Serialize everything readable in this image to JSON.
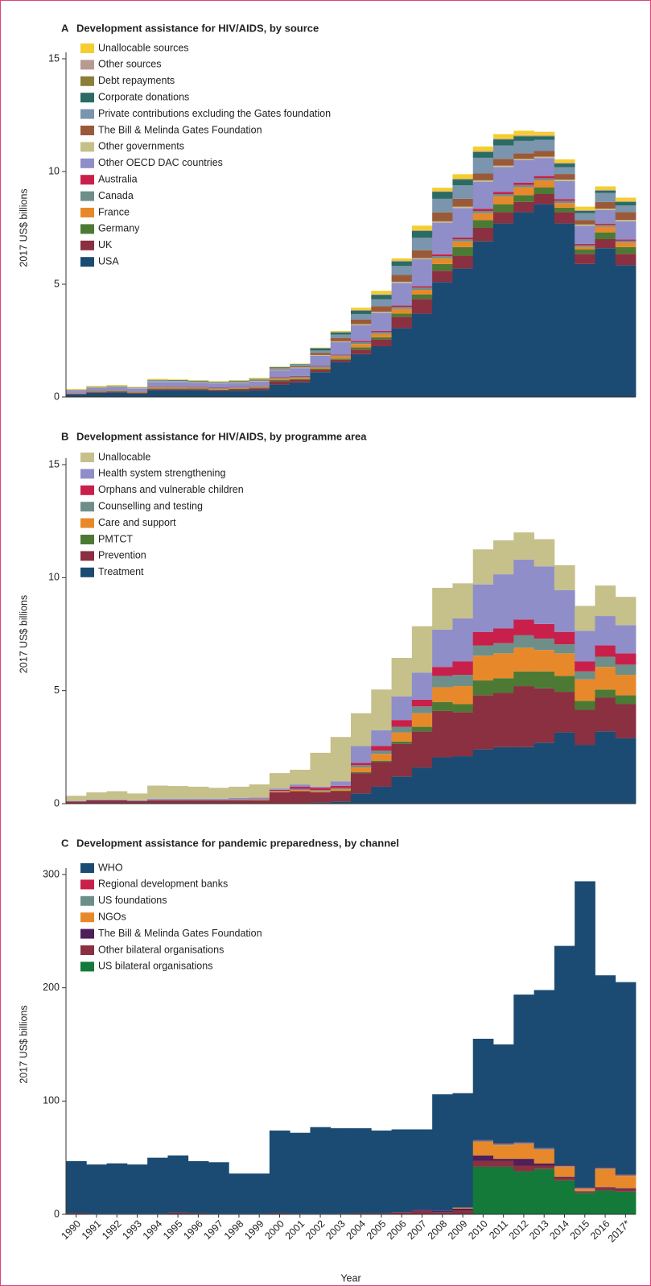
{
  "chart_data": [
    {
      "type": "bar",
      "stacked": true,
      "panel_label": "A",
      "title": "Development assistance for HIV/AIDS, by source",
      "ylabel": "2017 US$ billions",
      "ylim": [
        0,
        15
      ],
      "yticks": [
        0,
        5,
        10,
        15
      ],
      "series": [
        {
          "name": "Unallocable sources",
          "color": "#f5cd2f",
          "values": [
            0.03,
            0.04,
            0.04,
            0.03,
            0.04,
            0.03,
            0.03,
            0.03,
            0.03,
            0.05,
            0.02,
            0.02,
            0.02,
            0.05,
            0.1,
            0.15,
            0.1,
            0.2,
            0.15,
            0.2,
            0.2,
            0.2,
            0.2,
            0.15,
            0.15,
            0.15,
            0.15,
            0.15
          ]
        },
        {
          "name": "Other sources",
          "color": "#b89a93",
          "values": [
            0,
            0,
            0,
            0,
            0,
            0,
            0,
            0,
            0,
            0,
            0.01,
            0.01,
            0.01,
            0.01,
            0.02,
            0.02,
            0.02,
            0.02,
            0.02,
            0.02,
            0.03,
            0.03,
            0.03,
            0.03,
            0.03,
            0.03,
            0.03,
            0.03
          ]
        },
        {
          "name": "Debt repayments",
          "color": "#8b7e3a",
          "values": [
            0,
            0,
            0,
            0,
            0,
            0,
            0,
            0,
            0,
            0,
            0,
            0,
            0,
            0,
            0.01,
            0.01,
            0.02,
            0.02,
            0.02,
            0.02,
            0.02,
            0.02,
            0.02,
            0.02,
            0.02,
            0.01,
            0.01,
            0.01
          ]
        },
        {
          "name": "Corporate donations",
          "color": "#2a6b63",
          "values": [
            0.01,
            0.01,
            0.01,
            0.01,
            0.02,
            0.02,
            0.02,
            0.02,
            0.02,
            0.02,
            0.03,
            0.03,
            0.1,
            0.1,
            0.15,
            0.2,
            0.2,
            0.3,
            0.3,
            0.25,
            0.25,
            0.25,
            0.2,
            0.15,
            0.15,
            0.1,
            0.1,
            0.15
          ]
        },
        {
          "name": "Private contributions excluding the Gates foundation",
          "color": "#7a95ad",
          "values": [
            0.02,
            0.03,
            0.04,
            0.03,
            0.05,
            0.04,
            0.04,
            0.04,
            0.04,
            0.05,
            0.05,
            0.06,
            0.1,
            0.15,
            0.25,
            0.3,
            0.4,
            0.55,
            0.6,
            0.6,
            0.7,
            0.6,
            0.55,
            0.5,
            0.3,
            0.3,
            0.4,
            0.3
          ]
        },
        {
          "name": "The Bill & Melinda Gates Foundation",
          "color": "#9a5a3a",
          "values": [
            0,
            0,
            0,
            0,
            0,
            0,
            0,
            0,
            0.01,
            0.02,
            0.03,
            0.05,
            0.1,
            0.15,
            0.2,
            0.25,
            0.3,
            0.35,
            0.4,
            0.35,
            0.3,
            0.3,
            0.25,
            0.25,
            0.25,
            0.2,
            0.3,
            0.35
          ]
        },
        {
          "name": "Other governments",
          "color": "#c5c08a",
          "values": [
            0.01,
            0.01,
            0.01,
            0.01,
            0.02,
            0.02,
            0.02,
            0.02,
            0.02,
            0.02,
            0.03,
            0.03,
            0.03,
            0.04,
            0.05,
            0.05,
            0.05,
            0.05,
            0.06,
            0.06,
            0.06,
            0.06,
            0.06,
            0.06,
            0.06,
            0.06,
            0.06,
            0.06
          ]
        },
        {
          "name": "Other OECD DAC countries",
          "color": "#8f8ec8",
          "values": [
            0.1,
            0.12,
            0.13,
            0.12,
            0.2,
            0.2,
            0.18,
            0.18,
            0.18,
            0.2,
            0.3,
            0.35,
            0.45,
            0.55,
            0.7,
            0.8,
            1.0,
            1.2,
            1.4,
            1.3,
            1.2,
            1.1,
            1.0,
            0.8,
            0.8,
            0.8,
            0.6,
            0.8
          ]
        },
        {
          "name": "Australia",
          "color": "#c8204a",
          "values": [
            0.01,
            0.01,
            0.01,
            0.01,
            0.02,
            0.02,
            0.02,
            0.02,
            0.02,
            0.02,
            0.03,
            0.03,
            0.03,
            0.03,
            0.05,
            0.05,
            0.06,
            0.06,
            0.08,
            0.08,
            0.1,
            0.1,
            0.1,
            0.1,
            0.08,
            0.06,
            0.06,
            0.06
          ]
        },
        {
          "name": "Canada",
          "color": "#6e8f89",
          "values": [
            0.01,
            0.02,
            0.02,
            0.02,
            0.03,
            0.03,
            0.03,
            0.03,
            0.03,
            0.03,
            0.05,
            0.05,
            0.05,
            0.05,
            0.08,
            0.08,
            0.1,
            0.1,
            0.1,
            0.1,
            0.1,
            0.1,
            0.1,
            0.1,
            0.1,
            0.08,
            0.08,
            0.08
          ]
        },
        {
          "name": "France",
          "color": "#e7892a",
          "values": [
            0.01,
            0.02,
            0.02,
            0.02,
            0.04,
            0.04,
            0.03,
            0.03,
            0.03,
            0.03,
            0.05,
            0.05,
            0.05,
            0.1,
            0.15,
            0.15,
            0.2,
            0.2,
            0.25,
            0.25,
            0.3,
            0.35,
            0.35,
            0.3,
            0.2,
            0.1,
            0.25,
            0.2
          ]
        },
        {
          "name": "Germany",
          "color": "#4c7a34",
          "values": [
            0.01,
            0.02,
            0.02,
            0.02,
            0.03,
            0.03,
            0.03,
            0.03,
            0.03,
            0.03,
            0.05,
            0.05,
            0.05,
            0.05,
            0.1,
            0.1,
            0.15,
            0.2,
            0.3,
            0.4,
            0.35,
            0.35,
            0.3,
            0.3,
            0.2,
            0.2,
            0.3,
            0.3
          ]
        },
        {
          "name": "UK",
          "color": "#8a3040",
          "values": [
            0.02,
            0.03,
            0.03,
            0.03,
            0.05,
            0.05,
            0.05,
            0.05,
            0.06,
            0.08,
            0.15,
            0.1,
            0.1,
            0.1,
            0.2,
            0.3,
            0.5,
            0.65,
            0.5,
            0.55,
            0.6,
            0.5,
            0.45,
            0.45,
            0.5,
            0.45,
            0.4,
            0.5
          ]
        },
        {
          "name": "USA",
          "color": "#1b4b72",
          "values": [
            0.12,
            0.18,
            0.2,
            0.15,
            0.3,
            0.3,
            0.3,
            0.25,
            0.28,
            0.3,
            0.55,
            0.65,
            1.1,
            1.55,
            1.9,
            2.25,
            3.05,
            3.7,
            5.1,
            5.7,
            6.9,
            7.7,
            8.2,
            8.55,
            7.7,
            5.9,
            6.6,
            5.85
          ]
        }
      ]
    },
    {
      "type": "bar",
      "stacked": true,
      "panel_label": "B",
      "title": "Development assistance for HIV/AIDS, by programme area",
      "ylabel": "2017 US$ billions",
      "ylim": [
        0,
        15
      ],
      "yticks": [
        0,
        5,
        10,
        15
      ],
      "series": [
        {
          "name": "Unallocable",
          "color": "#c6c08b",
          "values": [
            0.23,
            0.32,
            0.37,
            0.3,
            0.58,
            0.56,
            0.53,
            0.48,
            0.5,
            0.58,
            0.69,
            0.65,
            1.5,
            1.96,
            1.45,
            1.8,
            1.7,
            2.05,
            1.85,
            1.55,
            1.55,
            1.5,
            1.2,
            1.2,
            1.1,
            1.1,
            1.35,
            1.25
          ]
        },
        {
          "name": "Health system strengthening",
          "color": "#8f8ec8",
          "values": [
            0.02,
            0.03,
            0.03,
            0.03,
            0.05,
            0.05,
            0.05,
            0.05,
            0.06,
            0.06,
            0.05,
            0.1,
            0.05,
            0.2,
            0.75,
            0.7,
            1.05,
            1.2,
            1.65,
            1.9,
            2.1,
            2.4,
            2.65,
            2.55,
            1.85,
            1.35,
            1.3,
            1.25
          ]
        },
        {
          "name": "Orphans and vulnerable children",
          "color": "#c8204a",
          "values": [
            0,
            0,
            0,
            0,
            0.01,
            0.01,
            0.01,
            0.01,
            0.01,
            0.02,
            0.05,
            0.1,
            0.1,
            0.1,
            0.1,
            0.2,
            0.3,
            0.3,
            0.4,
            0.6,
            0.6,
            0.65,
            0.7,
            0.65,
            0.55,
            0.45,
            0.5,
            0.5
          ]
        },
        {
          "name": "Counselling and testing",
          "color": "#6e8f89",
          "values": [
            0,
            0,
            0,
            0,
            0.01,
            0.01,
            0.01,
            0.01,
            0.02,
            0.02,
            0.03,
            0.05,
            0.05,
            0.05,
            0.1,
            0.15,
            0.25,
            0.3,
            0.5,
            0.5,
            0.45,
            0.45,
            0.55,
            0.5,
            0.4,
            0.35,
            0.45,
            0.45
          ]
        },
        {
          "name": "Care and support",
          "color": "#e7892a",
          "values": [
            0,
            0,
            0,
            0,
            0,
            0,
            0,
            0,
            0.01,
            0.02,
            0.03,
            0.05,
            0.05,
            0.07,
            0.2,
            0.3,
            0.4,
            0.6,
            0.65,
            0.8,
            1.1,
            1.1,
            1.05,
            0.95,
            1.0,
            0.95,
            1.0,
            0.9
          ]
        },
        {
          "name": "PMTCT",
          "color": "#4c7a34",
          "values": [
            0,
            0,
            0,
            0,
            0,
            0,
            0,
            0,
            0,
            0,
            0,
            0,
            0,
            0.02,
            0.05,
            0.05,
            0.1,
            0.2,
            0.4,
            0.35,
            0.65,
            0.65,
            0.65,
            0.75,
            0.7,
            0.4,
            0.35,
            0.4
          ]
        },
        {
          "name": "Prevention",
          "color": "#8a3040",
          "values": [
            0.1,
            0.15,
            0.15,
            0.12,
            0.15,
            0.15,
            0.15,
            0.15,
            0.15,
            0.15,
            0.5,
            0.55,
            0.45,
            0.45,
            0.9,
            1.1,
            1.45,
            1.6,
            2.05,
            1.95,
            2.4,
            2.4,
            2.7,
            2.4,
            1.8,
            1.55,
            1.5,
            1.5
          ]
        },
        {
          "name": "Treatment",
          "color": "#1b4b72",
          "values": [
            0,
            0,
            0,
            0,
            0,
            0,
            0,
            0,
            0,
            0,
            0,
            0,
            0.05,
            0.1,
            0.45,
            0.75,
            1.2,
            1.6,
            2.05,
            2.1,
            2.4,
            2.5,
            2.5,
            2.7,
            3.15,
            2.6,
            3.2,
            2.9
          ]
        }
      ]
    },
    {
      "type": "bar",
      "stacked": true,
      "panel_label": "C",
      "title": "Development assistance for pandemic preparedness, by channel",
      "ylabel": "2017 US$ billions",
      "xlabel": "Year",
      "categories": [
        "1990",
        "1991",
        "1992",
        "1993",
        "1994",
        "1995",
        "1996",
        "1997",
        "1998",
        "1999",
        "2000",
        "2001",
        "2002",
        "2003",
        "2004",
        "2005",
        "2006",
        "2007",
        "2008",
        "2009",
        "2010",
        "2011",
        "2012",
        "2013",
        "2014",
        "2015",
        "2016",
        "2017*"
      ],
      "ylim": [
        0,
        300
      ],
      "yticks": [
        0,
        100,
        200,
        300
      ],
      "series": [
        {
          "name": "WHO",
          "color": "#1b4b72",
          "values": [
            46,
            43.5,
            44.5,
            43.5,
            49.5,
            50.5,
            46,
            45.5,
            35.5,
            35.5,
            73,
            71.5,
            76.5,
            75.5,
            75,
            73,
            73,
            71,
            103,
            101,
            89.5,
            87.5,
            130.5,
            139.5,
            194,
            270.5,
            170,
            170
          ]
        },
        {
          "name": "Regional development banks",
          "color": "#c8204a",
          "values": [
            0,
            0,
            0,
            0,
            0,
            0,
            0,
            0,
            0,
            0,
            0,
            0,
            0,
            0,
            0,
            0,
            0,
            0,
            0,
            0,
            0.5,
            0.5,
            0.5,
            0.5,
            0.5,
            0.5,
            0.5,
            0.5
          ]
        },
        {
          "name": "US foundations",
          "color": "#6e8f89",
          "values": [
            0,
            0,
            0,
            0,
            0,
            0,
            0,
            0,
            0,
            0,
            0,
            0,
            0,
            0,
            0,
            0,
            0,
            0,
            0,
            0,
            1,
            1,
            1,
            1,
            0.5,
            0.5,
            0.5,
            0.5
          ]
        },
        {
          "name": "NGOs",
          "color": "#e7892a",
          "values": [
            0,
            0,
            0,
            0,
            0,
            0,
            0,
            0,
            0,
            0,
            0,
            0,
            0,
            0,
            0,
            0,
            0,
            0,
            0,
            1,
            12,
            12,
            13,
            12,
            9,
            2,
            16,
            11
          ]
        },
        {
          "name": "The Bill & Melinda Gates Foundation",
          "color": "#4f1f5a",
          "values": [
            0,
            0,
            0,
            0,
            0,
            0,
            0,
            0,
            0,
            0,
            0,
            0,
            0,
            0,
            0,
            0,
            0,
            1,
            1,
            2,
            5,
            2,
            6,
            2,
            1,
            0.5,
            1,
            1
          ]
        },
        {
          "name": "Other bilateral organisations",
          "color": "#8a3040",
          "values": [
            1,
            0.5,
            0.5,
            0.5,
            0.5,
            1.5,
            1,
            0.5,
            0.5,
            0.5,
            1,
            0.5,
            0.5,
            0.5,
            1,
            1,
            2,
            3,
            2,
            3,
            5,
            5,
            5,
            3,
            2,
            1,
            2,
            2
          ]
        },
        {
          "name": "US bilateral organisations",
          "color": "#137a3a",
          "values": [
            0,
            0,
            0,
            0,
            0,
            0,
            0,
            0,
            0,
            0,
            0,
            0,
            0,
            0,
            0,
            0,
            0,
            0,
            0,
            0,
            42,
            42,
            38,
            40,
            30,
            19,
            21,
            20
          ]
        }
      ]
    }
  ]
}
